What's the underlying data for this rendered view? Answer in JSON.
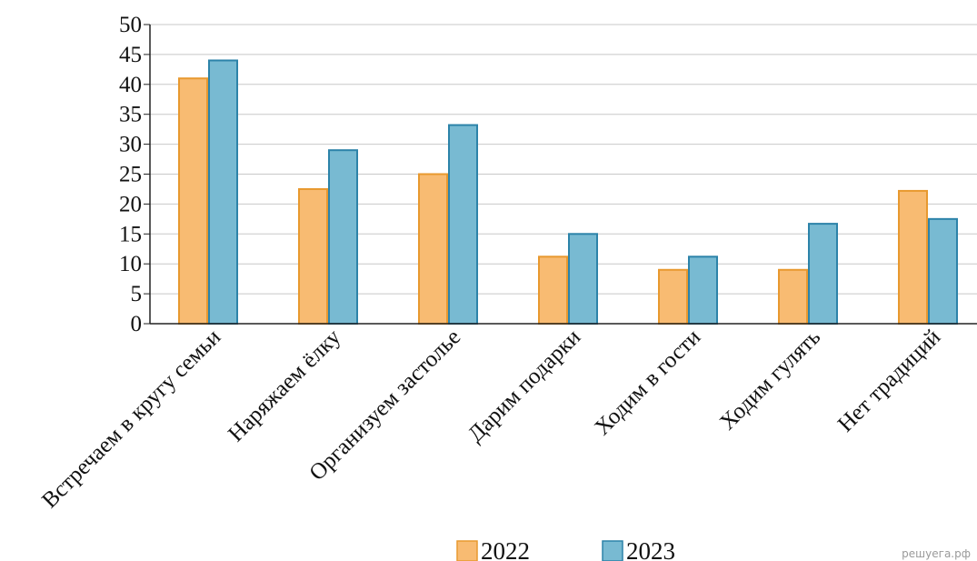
{
  "chart_data": {
    "type": "bar",
    "categories": [
      "Встречаем в кругу семьи",
      "Наряжаем ёлку",
      "Организуем застолье",
      "Дарим подарки",
      "Ходим в гости",
      "Ходим гулять",
      "Нет традиций"
    ],
    "series": [
      {
        "name": "2022",
        "values": [
          41,
          22.5,
          25,
          11.2,
          9,
          9,
          22.2
        ],
        "color": "#f8bb72",
        "stroke": "#e8992f"
      },
      {
        "name": "2023",
        "values": [
          44,
          29,
          33.2,
          15,
          11.2,
          16.7,
          17.5
        ],
        "color": "#78bad2",
        "stroke": "#2c83a9"
      }
    ],
    "ylim": [
      0,
      50
    ],
    "yticks": [
      "0",
      "5",
      "10",
      "15",
      "20",
      "25",
      "30",
      "35",
      "40",
      "45",
      "50"
    ],
    "grid": true,
    "legend": "bottom"
  },
  "watermark": "решуега.рф"
}
